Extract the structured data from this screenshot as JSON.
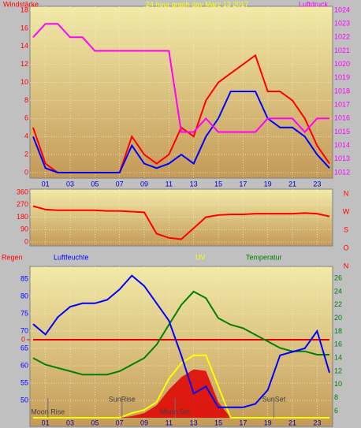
{
  "chart_data": [
    {
      "type": "line",
      "title": "24 hour graph day   Marz 13 2017",
      "ylabel": "Windstärke",
      "y2label": "Luftdruck",
      "x": [
        0,
        1,
        2,
        3,
        4,
        5,
        6,
        7,
        8,
        9,
        10,
        11,
        12,
        13,
        14,
        15,
        16,
        17,
        18,
        19,
        20,
        21,
        22,
        23,
        24
      ],
      "xlim": [
        0,
        24
      ],
      "xticks": [
        {
          "value": 1,
          "label": "01"
        },
        {
          "value": 3,
          "label": "03"
        },
        {
          "value": 5,
          "label": "05"
        },
        {
          "value": 7,
          "label": "07"
        },
        {
          "value": 9,
          "label": "09"
        },
        {
          "value": 11,
          "label": "11"
        },
        {
          "value": 13,
          "label": "13"
        },
        {
          "value": 15,
          "label": "15"
        },
        {
          "value": 17,
          "label": "17"
        },
        {
          "value": 19,
          "label": "19"
        },
        {
          "value": 21,
          "label": "21"
        },
        {
          "value": 23,
          "label": "23"
        }
      ],
      "ylim": [
        0,
        18
      ],
      "yticks": [
        0,
        2,
        4,
        6,
        8,
        10,
        12,
        14,
        16,
        18
      ],
      "y2lim": [
        1012,
        1024
      ],
      "y2ticks": [
        1012,
        1013,
        1014,
        1015,
        1016,
        1017,
        1018,
        1019,
        1020,
        1021,
        1022,
        1023,
        1024
      ],
      "grid": true,
      "series": [
        {
          "color": "#ff0000",
          "values": [
            5,
            1,
            0,
            0,
            0,
            0,
            0,
            0,
            4,
            2,
            1,
            2,
            5,
            4,
            8,
            10,
            11,
            12,
            13,
            9,
            9,
            8,
            6,
            3,
            1
          ]
        },
        {
          "color": "#0000ff",
          "values": [
            4,
            0.5,
            0,
            0,
            0,
            0,
            0,
            0,
            3,
            1,
            0.5,
            1,
            2,
            1,
            4,
            6,
            9,
            9,
            9,
            6,
            5,
            5,
            4,
            2,
            0.5
          ]
        },
        {
          "color": "#ff00ff",
          "axis": "y2",
          "values": [
            1022,
            1023,
            1023,
            1022,
            1022,
            1021,
            1021,
            1021,
            1021,
            1021,
            1021,
            1021,
            1015,
            1015,
            1016,
            1015,
            1015,
            1015,
            1015,
            1016,
            1016,
            1016,
            1015,
            1016,
            1016
          ]
        }
      ]
    },
    {
      "type": "line",
      "x": [
        0,
        1,
        2,
        3,
        4,
        5,
        6,
        7,
        8,
        9,
        10,
        11,
        12,
        13,
        14,
        15,
        16,
        17,
        18,
        19,
        20,
        21,
        22,
        23,
        24
      ],
      "xlim": [
        0,
        24
      ],
      "xticks": [
        1,
        3,
        5,
        7,
        9,
        11,
        13,
        15,
        17,
        19,
        21,
        23
      ],
      "ylim": [
        0,
        360
      ],
      "yticks": [
        0,
        90,
        180,
        270,
        360
      ],
      "compass": [
        "N",
        "W",
        "S",
        "O",
        "N"
      ],
      "grid": true,
      "series": [
        {
          "color": "#ff0000",
          "values": [
            260,
            235,
            230,
            230,
            230,
            230,
            225,
            225,
            220,
            215,
            60,
            30,
            20,
            100,
            180,
            195,
            200,
            200,
            205,
            205,
            205,
            205,
            210,
            205,
            185
          ]
        }
      ]
    },
    {
      "type": "line",
      "ylabel": "Luftfeuchte",
      "y2label": "Temperatur",
      "y3label": "Regen",
      "y4label": "UV",
      "x": [
        0,
        1,
        2,
        3,
        4,
        5,
        6,
        7,
        8,
        9,
        10,
        11,
        12,
        13,
        14,
        15,
        16,
        17,
        18,
        19,
        20,
        21,
        22,
        23,
        24
      ],
      "xlim": [
        0,
        24
      ],
      "xticks": [
        {
          "value": 1,
          "label": "01"
        },
        {
          "value": 3,
          "label": "03"
        },
        {
          "value": 5,
          "label": "05"
        },
        {
          "value": 7,
          "label": "07"
        },
        {
          "value": 9,
          "label": "09"
        },
        {
          "value": 11,
          "label": "11"
        },
        {
          "value": 13,
          "label": "13"
        },
        {
          "value": 15,
          "label": "15"
        },
        {
          "value": 17,
          "label": "17"
        },
        {
          "value": 19,
          "label": "19"
        },
        {
          "value": 21,
          "label": "21"
        },
        {
          "value": 23,
          "label": "23"
        }
      ],
      "ylim": [
        45,
        90
      ],
      "yticks": [
        50,
        55,
        60,
        65,
        70,
        75,
        80,
        85
      ],
      "y2lim": [
        5,
        28.5
      ],
      "y2ticks": [
        6,
        8,
        10,
        12,
        14,
        16,
        18,
        20,
        22,
        24,
        26
      ],
      "y3lim": [
        -1,
        1
      ],
      "y3ticks": [
        0
      ],
      "y4lim": [
        0,
        10
      ],
      "grid": true,
      "annotations": [
        {
          "text": "Moon Rise",
          "x": 1.2
        },
        {
          "text": "SunRise",
          "x": 7.2
        },
        {
          "text": "Moon Set",
          "x": 11.5
        },
        {
          "text": "SunSet",
          "x": 19.5
        }
      ],
      "series": [
        {
          "color": "#e00000",
          "axis": "y4",
          "fill": true,
          "values": [
            0,
            0,
            0,
            0,
            0,
            0,
            0,
            0,
            0.1,
            0.3,
            0.8,
            1.8,
            2.6,
            3.1,
            3,
            1,
            0,
            0,
            0,
            0,
            0,
            0,
            0,
            0,
            0
          ]
        },
        {
          "color": "#ffff00",
          "axis": "y4",
          "values": [
            0,
            0,
            0,
            0,
            0,
            0,
            0,
            0,
            0.3,
            0.5,
            1,
            2.5,
            3.5,
            4,
            4,
            2,
            0,
            0,
            0,
            0,
            0,
            0,
            0,
            0,
            0
          ]
        },
        {
          "color": "#e00000",
          "axis": "y3",
          "values": [
            0,
            0,
            0,
            0,
            0,
            0,
            0,
            0,
            0,
            0,
            0,
            0,
            0,
            0,
            0,
            0,
            0,
            0,
            0,
            0,
            0,
            0,
            0,
            0,
            0
          ]
        },
        {
          "color": "#008000",
          "axis": "y2",
          "values": [
            14,
            13,
            12.5,
            12,
            11.5,
            11.5,
            11.5,
            12,
            13,
            14,
            16,
            19,
            22,
            24,
            23,
            20,
            19,
            18.5,
            17.5,
            16.5,
            15.5,
            15,
            15,
            14.5,
            14.5
          ]
        },
        {
          "color": "#0000ff",
          "values": [
            72,
            69,
            74,
            77,
            78,
            78,
            79,
            82,
            86,
            83,
            78,
            73,
            63,
            52,
            54,
            48,
            48,
            48,
            49,
            53,
            63,
            64,
            65,
            70,
            58
          ]
        }
      ]
    }
  ]
}
